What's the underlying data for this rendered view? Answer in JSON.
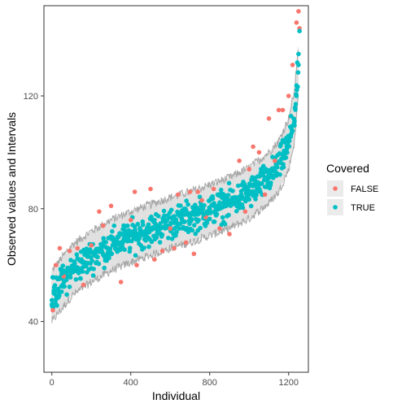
{
  "chart_data": {
    "type": "scatter",
    "title": "",
    "xlabel": "Individual",
    "ylabel": "Observed values and Intervals",
    "xlim": [
      -40,
      1300
    ],
    "ylim": [
      22,
      152
    ],
    "x_ticks": [
      0,
      400,
      800,
      1200
    ],
    "y_ticks": [
      40,
      80,
      120
    ],
    "grid": false,
    "legend": {
      "title": "Covered",
      "position": "right",
      "entries": [
        {
          "label": "FALSE",
          "color": "#F8766D"
        },
        {
          "label": "TRUE",
          "color": "#00BFC4"
        }
      ]
    },
    "interval_color": "#A6A6A6",
    "n_individuals": 1250,
    "interval_half_width": 9,
    "trend": {
      "x": [
        0,
        100,
        200,
        300,
        400,
        500,
        600,
        700,
        800,
        900,
        1000,
        1100,
        1150,
        1200,
        1230,
        1250,
        1260
      ],
      "y": [
        49,
        58,
        63,
        67,
        70,
        72.5,
        75,
        77,
        79.5,
        82,
        85.5,
        91,
        95,
        103,
        113,
        130,
        143
      ]
    },
    "series": [
      {
        "name": "FALSE",
        "color": "#F8766D",
        "x": [
          5,
          20,
          40,
          60,
          90,
          130,
          160,
          200,
          240,
          260,
          300,
          350,
          400,
          420,
          430,
          500,
          520,
          560,
          600,
          620,
          640,
          680,
          700,
          720,
          740,
          760,
          780,
          820,
          850,
          900,
          950,
          980,
          1000,
          1020,
          1050,
          1080,
          1100,
          1130,
          1150,
          1170,
          1200,
          1220,
          1240,
          1250,
          1255
        ],
        "y": [
          44,
          60,
          66,
          56,
          65,
          66,
          53,
          67,
          79,
          74,
          81,
          54,
          76,
          86,
          60,
          87,
          62,
          65,
          73,
          66,
          85,
          68,
          86,
          64,
          86,
          83,
          77,
          87,
          73,
          71,
          97,
          79,
          94,
          102,
          100,
          85,
          112,
          97,
          115,
          115,
          120,
          131,
          146,
          150,
          144
        ]
      },
      {
        "name": "TRUE",
        "color": "#00BFC4",
        "x": [
          0,
          10,
          30,
          50,
          80,
          110,
          150,
          180,
          220,
          250,
          280,
          320,
          360,
          380,
          440,
          460,
          480,
          540,
          580,
          620,
          660,
          700,
          740,
          770,
          800,
          840,
          870,
          900,
          930,
          960,
          990,
          1020,
          1050,
          1080,
          1110,
          1140,
          1170,
          1190,
          1210,
          1230,
          1240,
          1250,
          1255
        ],
        "y": [
          46,
          51,
          55,
          57,
          59,
          60,
          62,
          63,
          64,
          65,
          66,
          67,
          68,
          69,
          71,
          71,
          72,
          73,
          74,
          75,
          76,
          77,
          78,
          78,
          80,
          81,
          82,
          83,
          84,
          85,
          86,
          88,
          89,
          91,
          93,
          95,
          98,
          101,
          106,
          111,
          120,
          131,
          143
        ]
      }
    ]
  }
}
